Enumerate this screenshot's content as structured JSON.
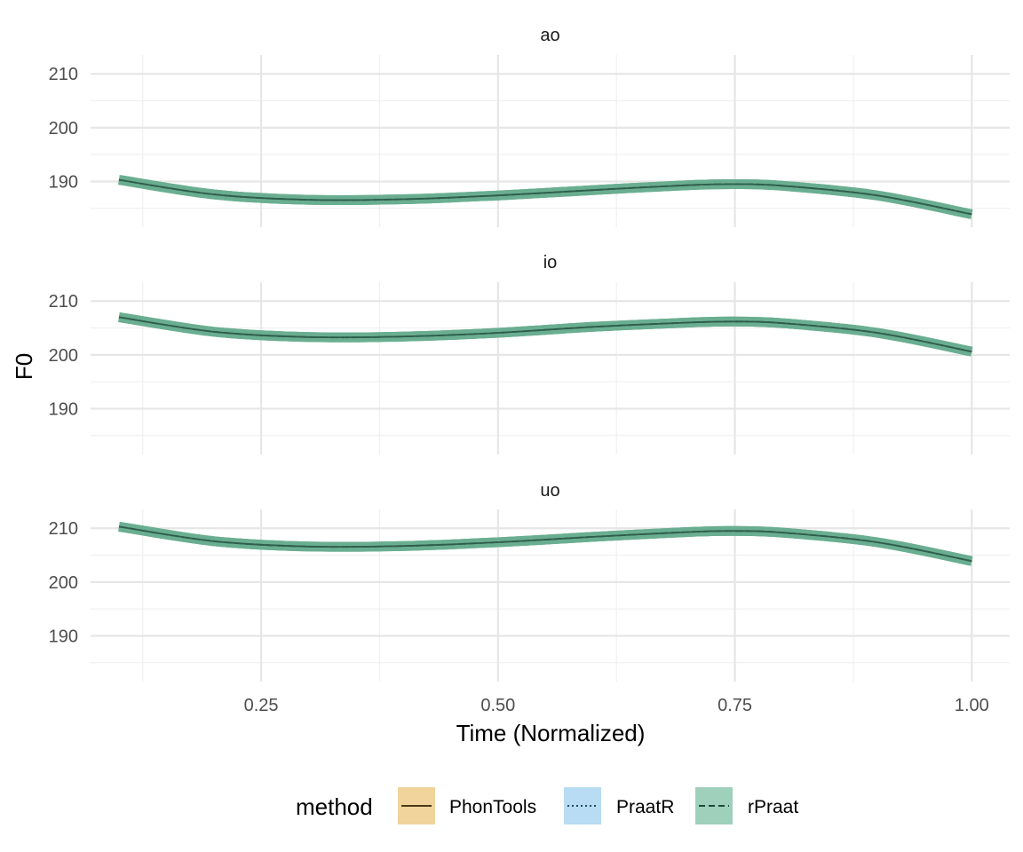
{
  "chart_data": {
    "type": "line",
    "xlabel": "Time (Normalized)",
    "ylabel": "F0",
    "xlim": [
      0.07,
      1.04
    ],
    "ylim": [
      181.5,
      213.5
    ],
    "x_ticks": [
      0.25,
      0.5,
      0.75,
      1.0
    ],
    "x_tick_labels": [
      "0.25",
      "0.50",
      "0.75",
      "1.00"
    ],
    "y_ticks": [
      190,
      200,
      210
    ],
    "y_tick_labels": [
      "190",
      "200",
      "210"
    ],
    "grid": true,
    "facets": [
      {
        "label": "ao",
        "series": [
          {
            "name": "PhonTools",
            "x": [
              0.1,
              0.2,
              0.3,
              0.4,
              0.5,
              0.6,
              0.7,
              0.75,
              0.8,
              0.9,
              1.0
            ],
            "y": [
              190.3,
              187.6,
              186.6,
              186.7,
              187.4,
              188.4,
              189.3,
              189.5,
              189.2,
              187.4,
              183.9
            ]
          },
          {
            "name": "PraatR",
            "x": [
              0.1,
              0.2,
              0.3,
              0.4,
              0.5,
              0.6,
              0.7,
              0.75,
              0.8,
              0.9,
              1.0
            ],
            "y": [
              190.3,
              187.6,
              186.6,
              186.7,
              187.4,
              188.4,
              189.3,
              189.5,
              189.2,
              187.4,
              183.9
            ]
          },
          {
            "name": "rPraat",
            "x": [
              0.1,
              0.2,
              0.3,
              0.4,
              0.5,
              0.6,
              0.7,
              0.75,
              0.8,
              0.9,
              1.0
            ],
            "y": [
              190.3,
              187.6,
              186.6,
              186.7,
              187.4,
              188.4,
              189.3,
              189.5,
              189.2,
              187.4,
              183.9
            ]
          }
        ]
      },
      {
        "label": "io",
        "series": [
          {
            "name": "PhonTools",
            "x": [
              0.1,
              0.2,
              0.3,
              0.4,
              0.5,
              0.6,
              0.7,
              0.75,
              0.8,
              0.9,
              1.0
            ],
            "y": [
              207.0,
              204.3,
              203.3,
              203.4,
              204.1,
              205.2,
              206.0,
              206.2,
              205.9,
              204.1,
              200.6
            ]
          },
          {
            "name": "PraatR",
            "x": [
              0.1,
              0.2,
              0.3,
              0.4,
              0.5,
              0.6,
              0.7,
              0.75,
              0.8,
              0.9,
              1.0
            ],
            "y": [
              207.0,
              204.3,
              203.3,
              203.4,
              204.1,
              205.2,
              206.0,
              206.2,
              205.9,
              204.1,
              200.6
            ]
          },
          {
            "name": "rPraat",
            "x": [
              0.1,
              0.2,
              0.3,
              0.4,
              0.5,
              0.6,
              0.7,
              0.75,
              0.8,
              0.9,
              1.0
            ],
            "y": [
              207.0,
              204.3,
              203.3,
              203.4,
              204.1,
              205.2,
              206.0,
              206.2,
              205.9,
              204.1,
              200.6
            ]
          }
        ]
      },
      {
        "label": "uo",
        "series": [
          {
            "name": "PhonTools",
            "x": [
              0.1,
              0.2,
              0.3,
              0.4,
              0.5,
              0.6,
              0.7,
              0.75,
              0.8,
              0.9,
              1.0
            ],
            "y": [
              210.3,
              207.6,
              206.6,
              206.7,
              207.4,
              208.4,
              209.3,
              209.5,
              209.2,
              207.4,
              203.9
            ]
          },
          {
            "name": "PraatR",
            "x": [
              0.1,
              0.2,
              0.3,
              0.4,
              0.5,
              0.6,
              0.7,
              0.75,
              0.8,
              0.9,
              1.0
            ],
            "y": [
              210.3,
              207.6,
              206.6,
              206.7,
              207.4,
              208.4,
              209.3,
              209.5,
              209.2,
              207.4,
              203.9
            ]
          },
          {
            "name": "rPraat",
            "x": [
              0.1,
              0.2,
              0.3,
              0.4,
              0.5,
              0.6,
              0.7,
              0.75,
              0.8,
              0.9,
              1.0
            ],
            "y": [
              210.3,
              207.6,
              206.6,
              206.7,
              207.4,
              208.4,
              209.3,
              209.5,
              209.2,
              207.4,
              203.9
            ]
          }
        ]
      }
    ],
    "legend": {
      "title": "method",
      "position": "bottom",
      "items": [
        {
          "label": "PhonTools",
          "fill": "#f0d49c",
          "line_color": "#4a3a14",
          "linetype": "solid"
        },
        {
          "label": "PraatR",
          "fill": "#b7dcf3",
          "line_color": "#1f4a66",
          "linetype": "dotted"
        },
        {
          "label": "rPraat",
          "fill": "#9ed0bb",
          "line_color": "#1f4a3a",
          "linetype": "dashed"
        }
      ]
    },
    "colors": {
      "ribbon": "#6aae91",
      "line": "#2f5e4c",
      "grid_major": "#e6e6e6",
      "grid_minor": "#f0f0f0"
    }
  }
}
